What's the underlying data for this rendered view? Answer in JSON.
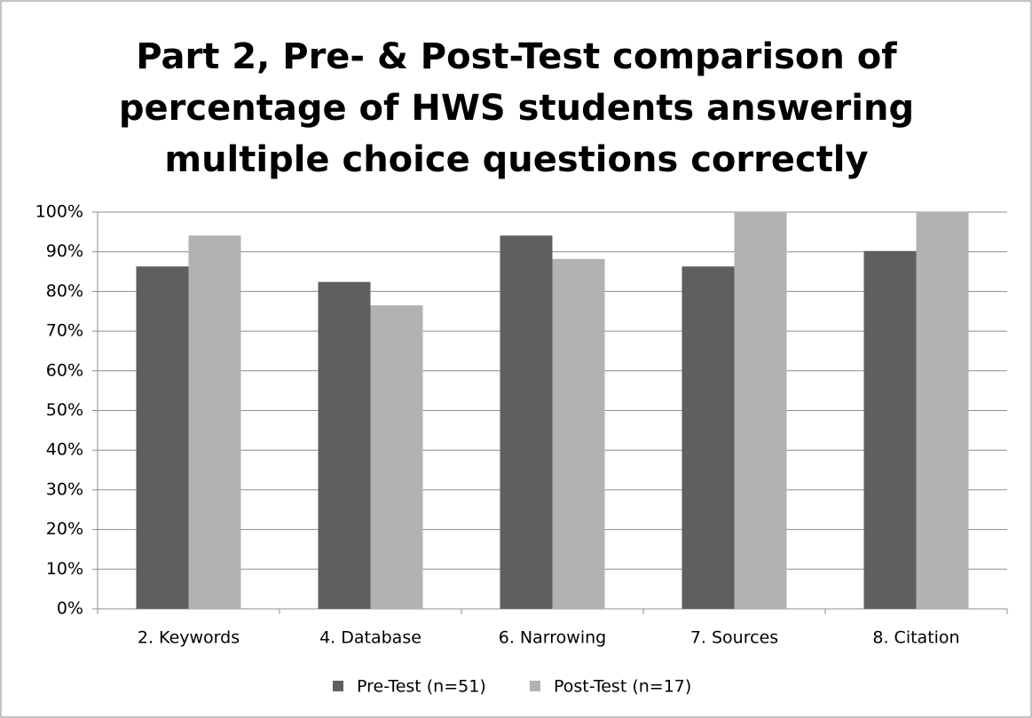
{
  "chart_data": {
    "type": "bar",
    "title": [
      "Part 2, Pre- & Post-Test comparison of",
      "percentage of HWS students answering",
      "multiple choice questions correctly"
    ],
    "categories": [
      "2. Keywords",
      "4. Database",
      "6. Narrowing",
      "7. Sources",
      "8. Citation"
    ],
    "series": [
      {
        "name": "Pre-Test (n=51)",
        "color": "#5f5f5f",
        "values": [
          86.3,
          82.4,
          94.1,
          86.3,
          90.2
        ]
      },
      {
        "name": "Post-Test (n=17)",
        "color": "#b2b2b2",
        "values": [
          94.1,
          76.5,
          88.2,
          100,
          100
        ]
      }
    ],
    "ylim": [
      0,
      100
    ],
    "yticks": [
      {
        "value": 0,
        "label": "0%"
      },
      {
        "value": 10,
        "label": "10%"
      },
      {
        "value": 20,
        "label": "20%"
      },
      {
        "value": 30,
        "label": "30%"
      },
      {
        "value": 40,
        "label": "40%"
      },
      {
        "value": 50,
        "label": "50%"
      },
      {
        "value": 60,
        "label": "60%"
      },
      {
        "value": 70,
        "label": "70%"
      },
      {
        "value": 80,
        "label": "80%"
      },
      {
        "value": 90,
        "label": "90%"
      },
      {
        "value": 100,
        "label": "100%"
      }
    ],
    "grid": true,
    "legend": "bottom"
  }
}
